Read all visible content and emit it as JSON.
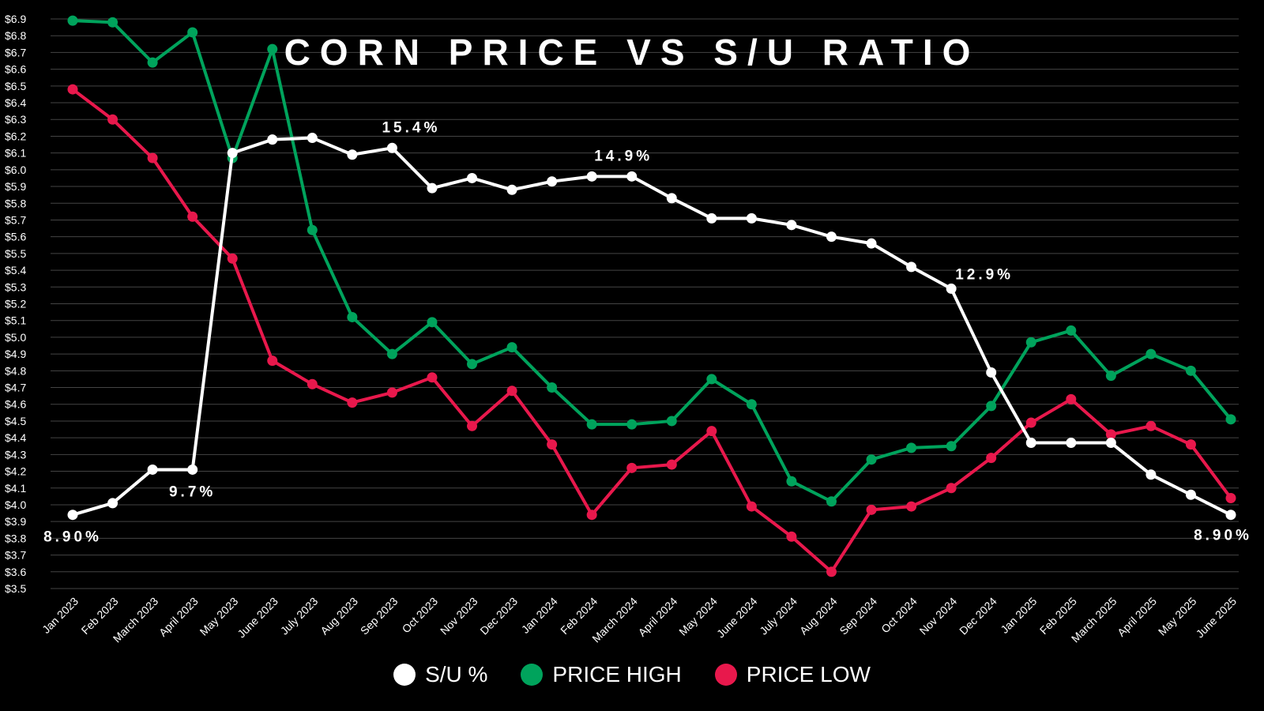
{
  "chart_data": {
    "type": "line",
    "title": "CORN PRICE VS S/U RATIO",
    "categories": [
      "Jan 2023",
      "Feb 2023",
      "March 2023",
      "April 2023",
      "May 2023",
      "June 2023",
      "July 2023",
      "Aug 2023",
      "Sep 2023",
      "Oct 2023",
      "Nov 2023",
      "Dec 2023",
      "Jan 2024",
      "Feb 2024",
      "March 2024",
      "April 2024",
      "May 2024",
      "June 2024",
      "July 2024",
      "Aug 2024",
      "Sep 2024",
      "Oct 2024",
      "Nov 2024",
      "Dec 2024",
      "Jan 2025",
      "Feb 2025",
      "March 2025",
      "April 2025",
      "May 2025",
      "June 2025"
    ],
    "ylim": [
      3.5,
      6.9
    ],
    "yticks": [
      "$6.9",
      "$6.8",
      "$6.7",
      "$6.6",
      "$6.5",
      "$6.4",
      "$6.3",
      "$6.2",
      "$6.1",
      "$6.0",
      "$5.9",
      "$5.8",
      "$5.7",
      "$5.6",
      "$5.5",
      "$5.4",
      "$5.3",
      "$5.2",
      "$5.1",
      "$5.0",
      "$4.9",
      "$4.8",
      "$4.7",
      "$4.6",
      "$4.5",
      "$4.4",
      "$4.3",
      "$4.2",
      "$4.1",
      "$4.0",
      "$3.9",
      "$3.8",
      "$3.7",
      "$3.6",
      "$3.5"
    ],
    "grid": true,
    "legend_position": "bottom",
    "series": [
      {
        "name": "S/U %",
        "color": "#ffffff",
        "values": [
          3.94,
          4.01,
          4.21,
          4.21,
          6.1,
          6.18,
          6.19,
          6.09,
          6.13,
          5.89,
          5.95,
          5.88,
          5.93,
          5.96,
          5.96,
          5.83,
          5.71,
          5.71,
          5.67,
          5.6,
          5.56,
          5.42,
          5.29,
          4.79,
          4.37,
          4.37,
          4.37,
          4.18,
          4.06,
          3.94
        ]
      },
      {
        "name": "PRICE HIGH",
        "color": "#00a35c",
        "values": [
          6.89,
          6.88,
          6.64,
          6.82,
          6.07,
          6.72,
          5.64,
          5.12,
          4.9,
          5.09,
          4.84,
          4.94,
          4.7,
          4.48,
          4.48,
          4.5,
          4.75,
          4.6,
          4.14,
          4.02,
          4.27,
          4.34,
          4.35,
          4.59,
          4.97,
          5.04,
          4.77,
          4.9,
          4.8,
          4.51
        ]
      },
      {
        "name": "PRICE LOW",
        "color": "#e8184c",
        "values": [
          6.48,
          6.3,
          6.07,
          5.72,
          5.47,
          4.86,
          4.72,
          4.61,
          4.67,
          4.76,
          4.47,
          4.68,
          4.36,
          3.94,
          4.22,
          4.24,
          4.44,
          3.99,
          3.81,
          3.6,
          3.97,
          3.99,
          4.1,
          4.28,
          4.49,
          4.63,
          4.42,
          4.47,
          4.36,
          4.04
        ]
      }
    ],
    "annotations": [
      {
        "text": "8.90%",
        "series": "S/U %",
        "index": 0,
        "pos": "below"
      },
      {
        "text": "9.7%",
        "series": "S/U %",
        "index": 3,
        "pos": "below"
      },
      {
        "text": "15.4%",
        "series": "S/U %",
        "index": 8,
        "pos": "above"
      },
      {
        "text": "14.9%",
        "series": "S/U %",
        "index": 13,
        "pos": "above-right"
      },
      {
        "text": "12.9%",
        "series": "S/U %",
        "index": 22,
        "pos": "right"
      },
      {
        "text": "8.90%",
        "series": "S/U %",
        "index": 29,
        "pos": "below-left"
      }
    ]
  },
  "legend": {
    "items": [
      {
        "label": "S/U %",
        "color": "#ffffff"
      },
      {
        "label": "PRICE HIGH",
        "color": "#00a35c"
      },
      {
        "label": "PRICE LOW",
        "color": "#e8184c"
      }
    ]
  }
}
